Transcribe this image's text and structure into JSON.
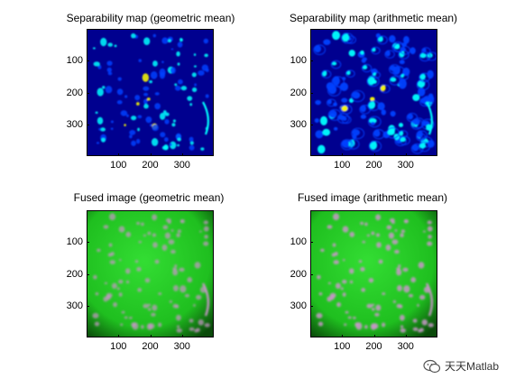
{
  "panels": [
    {
      "title": "Separability map (geometric mean)",
      "type": "heat",
      "variant": "geo"
    },
    {
      "title": "Separability map (arithmetic mean)",
      "type": "heat",
      "variant": "arith"
    },
    {
      "title": "Fused image (geometric mean)",
      "type": "fused",
      "variant": "geo"
    },
    {
      "title": "Fused image (arithmetic mean)",
      "type": "fused",
      "variant": "arith"
    }
  ],
  "y_ticks": [
    "100",
    "200",
    "300"
  ],
  "x_ticks": [
    "100",
    "200",
    "300"
  ],
  "axis_range": [
    0,
    400
  ],
  "watermark": {
    "text": "天天Matlab",
    "icon": "wechat-icon"
  },
  "colors": {
    "heat_bg": "#00008f",
    "heat_low": "#0040ff",
    "heat_mid": "#00ffff",
    "heat_high": "#ffff00",
    "fused_bg": "#1fbf1f",
    "fused_blob": "#c896c8"
  }
}
